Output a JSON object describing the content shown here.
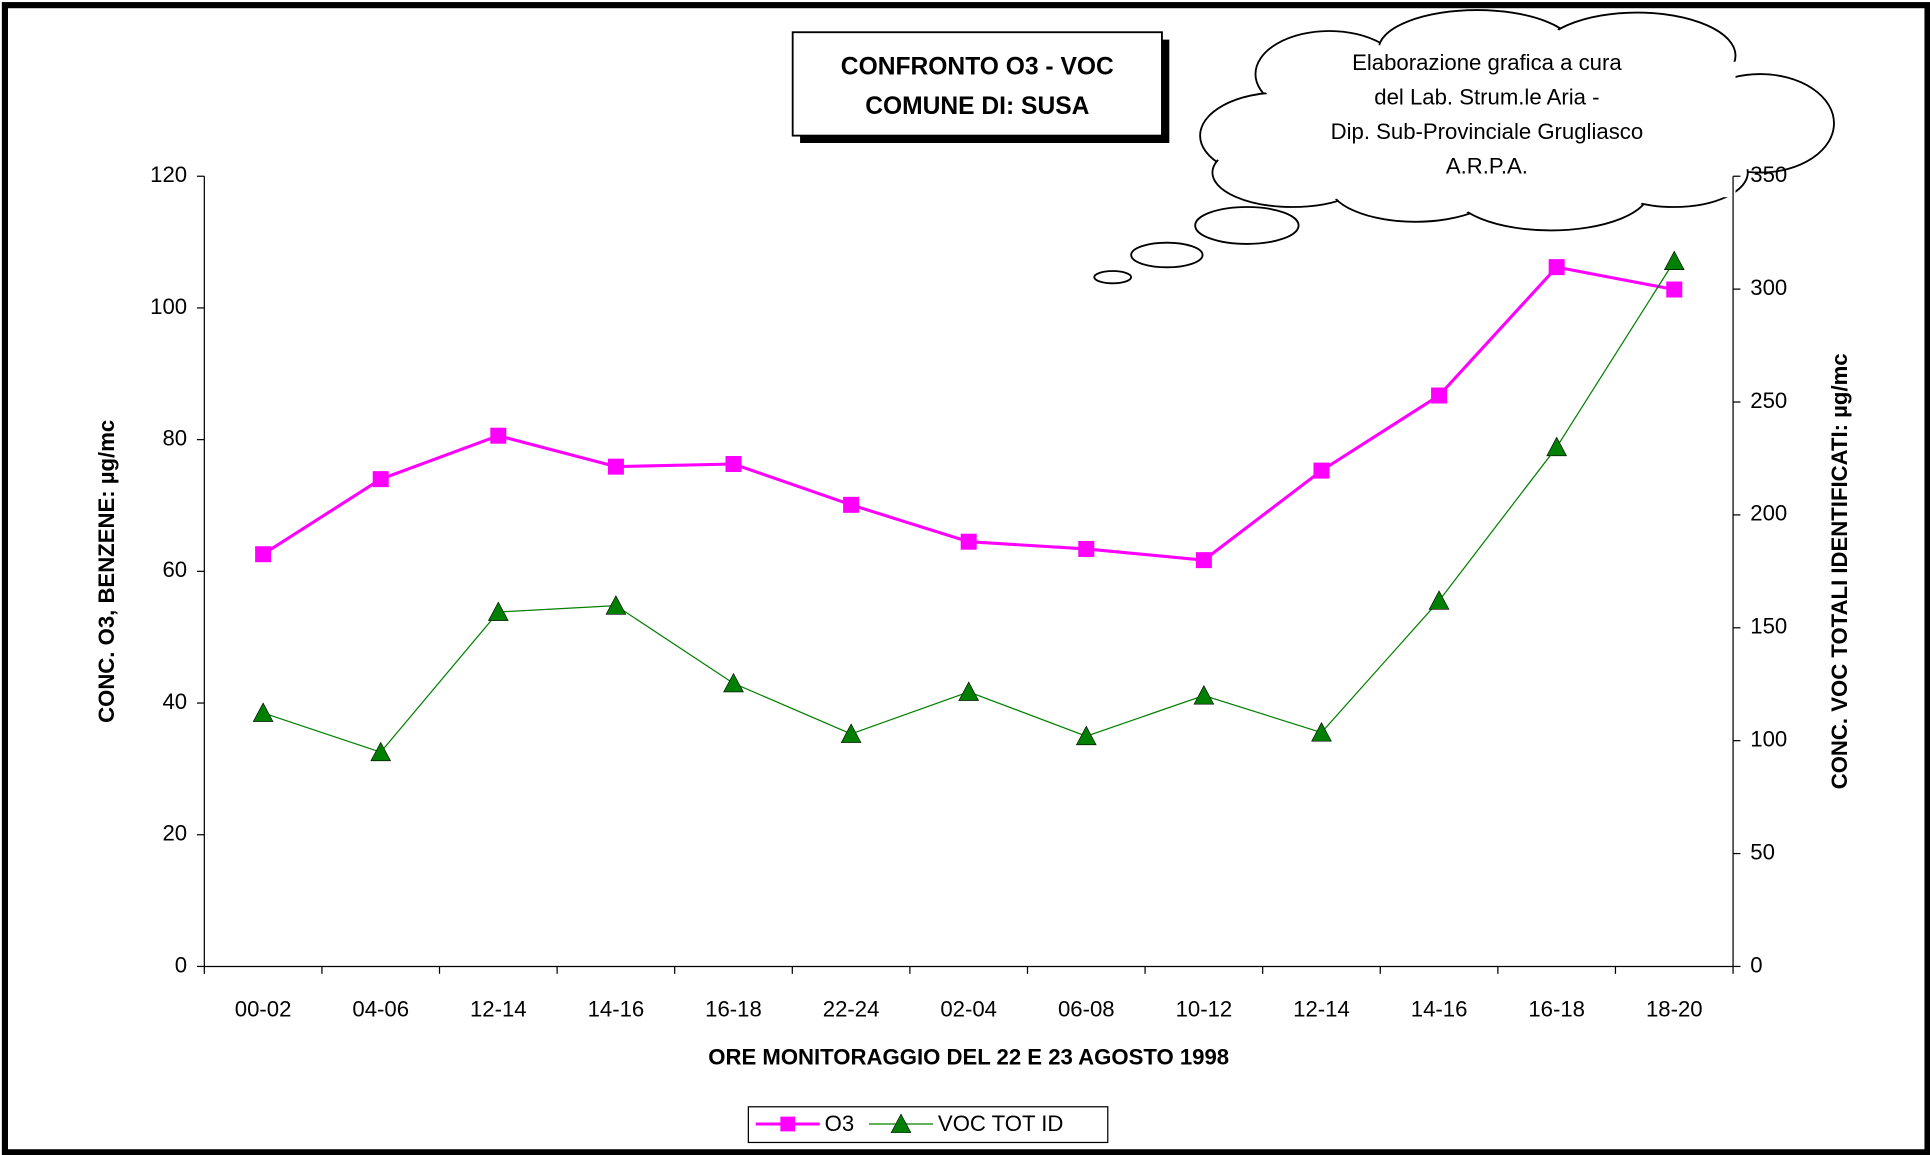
{
  "chart_data": {
    "type": "line",
    "title": [
      "CONFRONTO O3 - VOC",
      "COMUNE DI: SUSA"
    ],
    "annotation": [
      "Elaborazione grafica a cura",
      "del Lab. Strum.le Aria -",
      "Dip. Sub-Provinciale  Grugliasco",
      "A.R.P.A."
    ],
    "x_label": "ORE MONITORAGGIO DEL 22 E 23 AGOSTO 1998",
    "y_label": "CONC. O3, BENZENE: µg/mc",
    "y2_label": "CONC. VOC TOTALI IDENTIFICATI: µg/mc",
    "categories": [
      "00-02",
      "04-06",
      "12-14",
      "14-16",
      "16-18",
      "22-24",
      "02-04",
      "06-08",
      "10-12",
      "12-14",
      "14-16",
      "16-18",
      "18-20"
    ],
    "series": [
      {
        "name": "O3",
        "color": "#ff00ff",
        "marker": "square",
        "values": [
          62.6,
          74.0,
          80.6,
          75.9,
          76.3,
          70.1,
          64.5,
          63.4,
          61.7,
          75.3,
          86.7,
          106.2,
          102.8
        ]
      },
      {
        "name": "VOC TOT ID",
        "color": "#008000",
        "marker": "triangle",
        "axis": "y2",
        "values": [
          112.3,
          94.9,
          157,
          159.8,
          125.4,
          103,
          121.6,
          102,
          120,
          103.6,
          162,
          230,
          312.4
        ]
      }
    ],
    "ylim": [
      0,
      120
    ],
    "yticks": [
      0,
      20,
      40,
      60,
      80,
      100,
      120
    ],
    "y2lim": [
      0,
      350
    ],
    "y2ticks": [
      0,
      50,
      100,
      150,
      200,
      250,
      300,
      350
    ],
    "legend": "bottom"
  }
}
